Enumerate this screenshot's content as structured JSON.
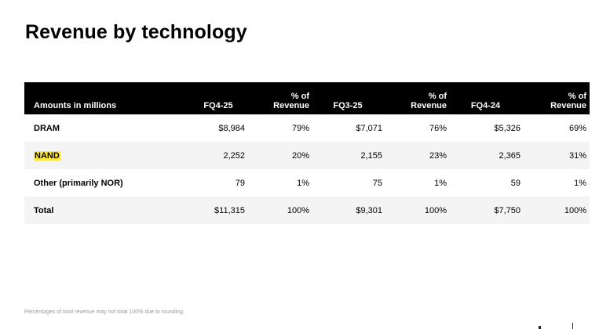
{
  "title": "Revenue by technology",
  "table": {
    "headers": [
      "Amounts in millions",
      "FQ4-25",
      "% of Revenue",
      "FQ3-25",
      "% of Revenue",
      "FQ4-24",
      "% of Revenue"
    ],
    "pct_header_line1": "% of",
    "pct_header_line2": "Revenue",
    "rows": [
      {
        "name": "DRAM",
        "cells": [
          "$8,984",
          "79%",
          "$7,071",
          "76%",
          "$5,326",
          "69%"
        ]
      },
      {
        "name": "NAND",
        "cells": [
          "2,252",
          "20%",
          "2,155",
          "23%",
          "2,365",
          "31%"
        ]
      },
      {
        "name": "Other (primarily NOR)",
        "cells": [
          "79",
          "1%",
          "75",
          "1%",
          "59",
          "1%"
        ]
      },
      {
        "name": "Total",
        "cells": [
          "$11,315",
          "100%",
          "$9,301",
          "100%",
          "$7,750",
          "100%"
        ]
      }
    ],
    "highlighted_row_label": "NAND",
    "highlight_color": "#ffe83a",
    "header_bg": "#000000",
    "stripe_bg": "#f4f4f4"
  },
  "footnote": "Percentages of total revenue may not total 100% due to rounding."
}
